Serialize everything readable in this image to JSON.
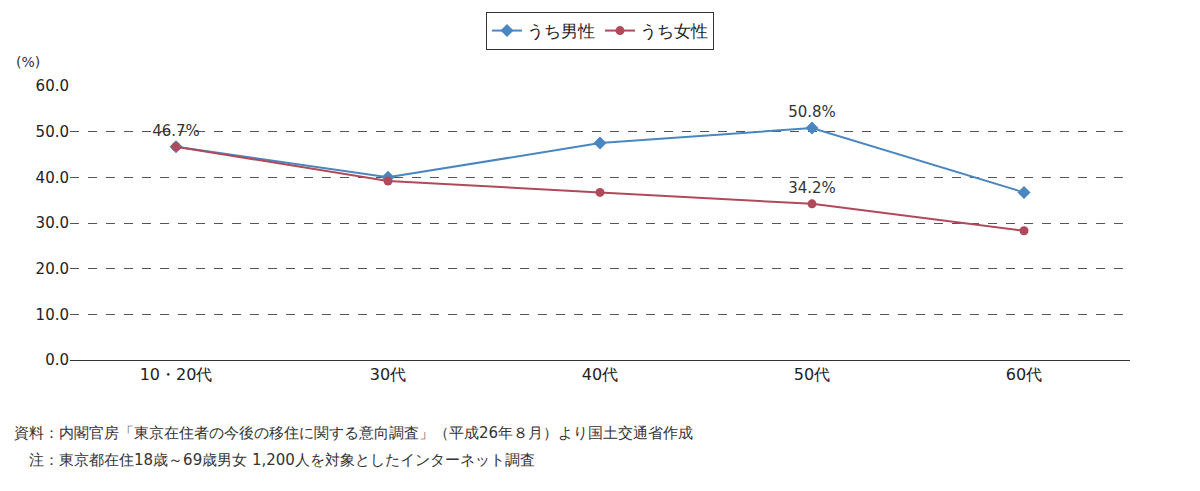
{
  "chart_data": {
    "type": "line",
    "ylabel": "(%)",
    "categories": [
      "10・20代",
      "30代",
      "40代",
      "50代",
      "60代"
    ],
    "series": [
      {
        "name": "うち男性",
        "color": "#4a86c0",
        "marker": "diamond",
        "line_style": "solid",
        "values": [
          46.7,
          40.0,
          47.5,
          50.8,
          36.7
        ],
        "value_labels": [
          "46.7%",
          null,
          null,
          "50.8%",
          null
        ]
      },
      {
        "name": "うち女性",
        "color": "#b04a5a",
        "marker": "circle",
        "line_style": "solid",
        "values": [
          46.7,
          39.2,
          36.7,
          34.2,
          28.3
        ],
        "value_labels": [
          null,
          null,
          null,
          "34.2%",
          null
        ]
      }
    ],
    "ylim": [
      0,
      60
    ],
    "yticks": [
      {
        "value": 0,
        "label": "0.0"
      },
      {
        "value": 10,
        "label": "10.0"
      },
      {
        "value": 20,
        "label": "20.0"
      },
      {
        "value": 30,
        "label": "30.0"
      },
      {
        "value": 40,
        "label": "40.0"
      },
      {
        "value": 50,
        "label": "50.0"
      },
      {
        "value": 60,
        "label": "60.0"
      }
    ],
    "grid": true,
    "legend": "top",
    "data_labels": true,
    "notes": [
      "資料：内閣官房「東京在住者の今後の移住に関する意向調査」（平成26年８月）より国土交通省作成",
      "　注：東京都在住18歳～69歳男女 1,200人を対象としたインターネット調査"
    ]
  }
}
